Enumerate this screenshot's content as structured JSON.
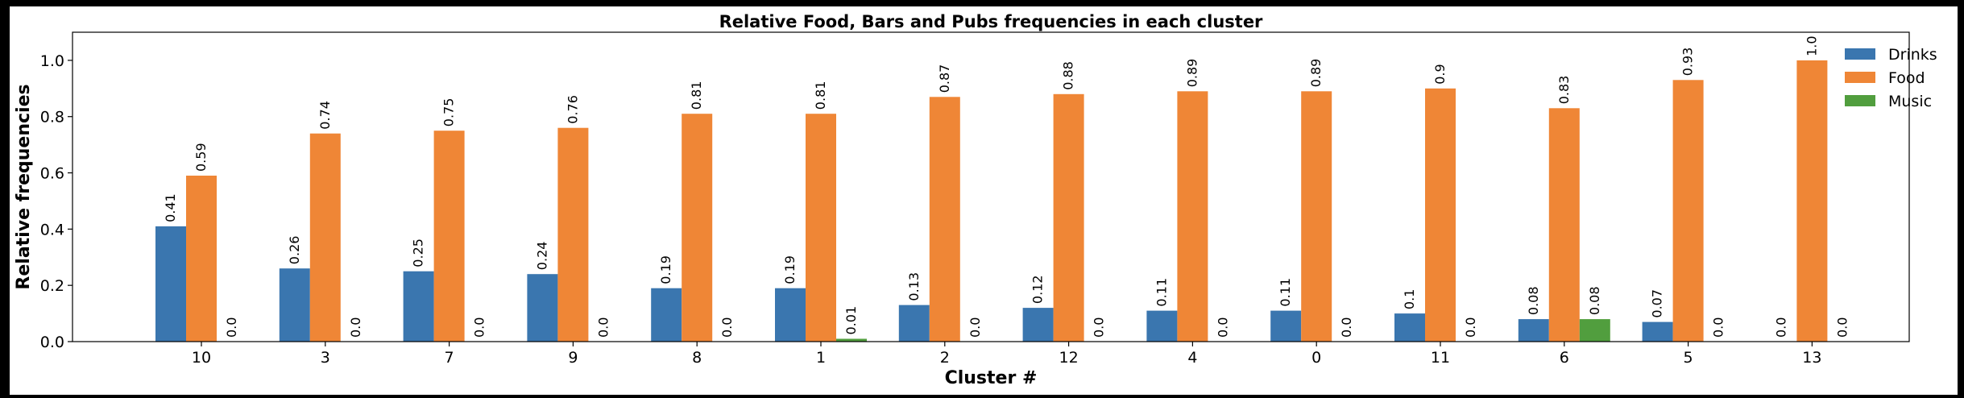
{
  "chart_data": {
    "type": "bar",
    "title": "Relative Food, Bars and Pubs frequencies in each cluster",
    "xlabel": "Cluster #",
    "ylabel": "Relative frequencies",
    "ylim": [
      0,
      1.1
    ],
    "yticks": [
      "0.0",
      "0.2",
      "0.4",
      "0.6",
      "0.8",
      "1.0"
    ],
    "categories": [
      "10",
      "3",
      "7",
      "9",
      "8",
      "1",
      "2",
      "12",
      "4",
      "0",
      "11",
      "6",
      "5",
      "13"
    ],
    "series": [
      {
        "name": "Drinks",
        "color": "#3a76af",
        "values": [
          0.41,
          0.26,
          0.25,
          0.24,
          0.19,
          0.19,
          0.13,
          0.12,
          0.11,
          0.11,
          0.1,
          0.08,
          0.07,
          0.0
        ],
        "labels": [
          "0.41",
          "0.26",
          "0.25",
          "0.24",
          "0.19",
          "0.19",
          "0.13",
          "0.12",
          "0.11",
          "0.11",
          "0.1",
          "0.08",
          "0.07",
          "0.0"
        ]
      },
      {
        "name": "Food",
        "color": "#ef8636",
        "values": [
          0.59,
          0.74,
          0.75,
          0.76,
          0.81,
          0.81,
          0.87,
          0.88,
          0.89,
          0.89,
          0.9,
          0.83,
          0.93,
          1.0
        ],
        "labels": [
          "0.59",
          "0.74",
          "0.75",
          "0.76",
          "0.81",
          "0.81",
          "0.87",
          "0.88",
          "0.89",
          "0.89",
          "0.9",
          "0.83",
          "0.93",
          "1.0"
        ]
      },
      {
        "name": "Music",
        "color": "#519e3e",
        "values": [
          0.0,
          0.0,
          0.0,
          0.0,
          0.0,
          0.01,
          0.0,
          0.0,
          0.0,
          0.0,
          0.0,
          0.08,
          0.0,
          0.0
        ],
        "labels": [
          "0.0",
          "0.0",
          "0.0",
          "0.0",
          "0.0",
          "0.01",
          "0.0",
          "0.0",
          "0.0",
          "0.0",
          "0.0",
          "0.08",
          "0.0",
          "0.0"
        ]
      }
    ],
    "legend_position": "top-right",
    "grid": false
  }
}
